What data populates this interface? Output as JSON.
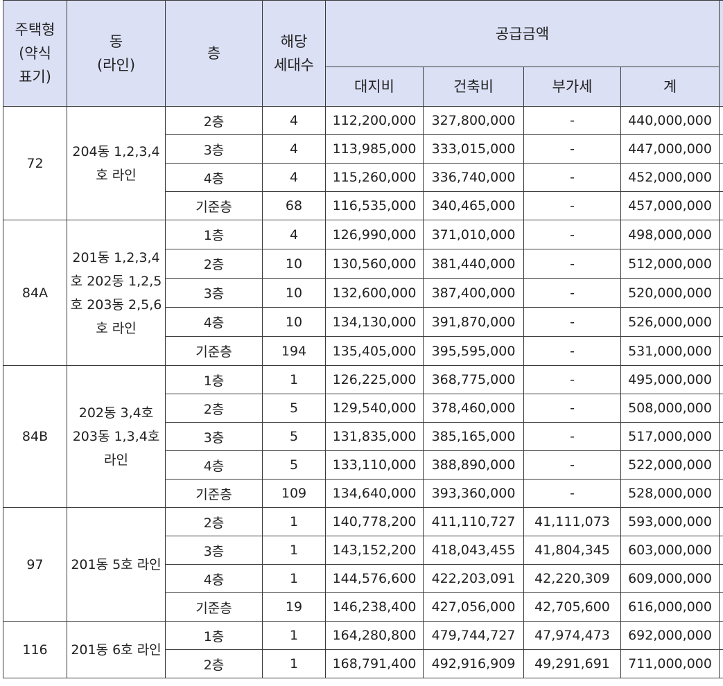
{
  "header": {
    "type": "주택형\n(약식\n표기)",
    "dong": "동\n(라인)",
    "floor": "층",
    "households": "해당\n세대수",
    "supply_price": "공급금액",
    "land": "대지비",
    "building": "건축비",
    "vat": "부가세",
    "total": "계"
  },
  "groups": [
    {
      "type": "72",
      "dong": "204동\n1,2,3,4호\n라인",
      "rows": [
        {
          "floor": "2층",
          "units": "4",
          "land": "112,200,000",
          "building": "327,800,000",
          "vat": "-",
          "total": "440,000,000"
        },
        {
          "floor": "3층",
          "units": "4",
          "land": "113,985,000",
          "building": "333,015,000",
          "vat": "-",
          "total": "447,000,000"
        },
        {
          "floor": "4층",
          "units": "4",
          "land": "115,260,000",
          "building": "336,740,000",
          "vat": "-",
          "total": "452,000,000"
        },
        {
          "floor": "기준층",
          "units": "68",
          "land": "116,535,000",
          "building": "340,465,000",
          "vat": "-",
          "total": "457,000,000"
        }
      ]
    },
    {
      "type": "84A",
      "dong": "201동\n1,2,3,4호\n202동\n1,2,5호\n203동\n2,5,6호 라인",
      "rows": [
        {
          "floor": "1층",
          "units": "4",
          "land": "126,990,000",
          "building": "371,010,000",
          "vat": "-",
          "total": "498,000,000"
        },
        {
          "floor": "2층",
          "units": "10",
          "land": "130,560,000",
          "building": "381,440,000",
          "vat": "-",
          "total": "512,000,000"
        },
        {
          "floor": "3층",
          "units": "10",
          "land": "132,600,000",
          "building": "387,400,000",
          "vat": "-",
          "total": "520,000,000"
        },
        {
          "floor": "4층",
          "units": "10",
          "land": "134,130,000",
          "building": "391,870,000",
          "vat": "-",
          "total": "526,000,000"
        },
        {
          "floor": "기준층",
          "units": "194",
          "land": "135,405,000",
          "building": "395,595,000",
          "vat": "-",
          "total": "531,000,000"
        }
      ]
    },
    {
      "type": "84B",
      "dong": "202동\n3,4호\n203동\n1,3,4호\n라인",
      "rows": [
        {
          "floor": "1층",
          "units": "1",
          "land": "126,225,000",
          "building": "368,775,000",
          "vat": "-",
          "total": "495,000,000"
        },
        {
          "floor": "2층",
          "units": "5",
          "land": "129,540,000",
          "building": "378,460,000",
          "vat": "-",
          "total": "508,000,000"
        },
        {
          "floor": "3층",
          "units": "5",
          "land": "131,835,000",
          "building": "385,165,000",
          "vat": "-",
          "total": "517,000,000"
        },
        {
          "floor": "4층",
          "units": "5",
          "land": "133,110,000",
          "building": "388,890,000",
          "vat": "-",
          "total": "522,000,000"
        },
        {
          "floor": "기준층",
          "units": "109",
          "land": "134,640,000",
          "building": "393,360,000",
          "vat": "-",
          "total": "528,000,000"
        }
      ]
    },
    {
      "type": "97",
      "dong": "201동\n5호 라인",
      "rows": [
        {
          "floor": "2층",
          "units": "1",
          "land": "140,778,200",
          "building": "411,110,727",
          "vat": "41,111,073",
          "total": "593,000,000"
        },
        {
          "floor": "3층",
          "units": "1",
          "land": "143,152,200",
          "building": "418,043,455",
          "vat": "41,804,345",
          "total": "603,000,000"
        },
        {
          "floor": "4층",
          "units": "1",
          "land": "144,576,600",
          "building": "422,203,091",
          "vat": "42,220,309",
          "total": "609,000,000"
        },
        {
          "floor": "기준층",
          "units": "19",
          "land": "146,238,400",
          "building": "427,056,000",
          "vat": "42,705,600",
          "total": "616,000,000"
        }
      ]
    },
    {
      "type": "116",
      "dong": "201동\n6호 라인",
      "rows": [
        {
          "floor": "1층",
          "units": "1",
          "land": "164,280,800",
          "building": "479,744,727",
          "vat": "47,974,473",
          "total": "692,000,000"
        },
        {
          "floor": "2층",
          "units": "1",
          "land": "168,791,400",
          "building": "492,916,909",
          "vat": "49,291,691",
          "total": "711,000,000"
        }
      ]
    }
  ]
}
